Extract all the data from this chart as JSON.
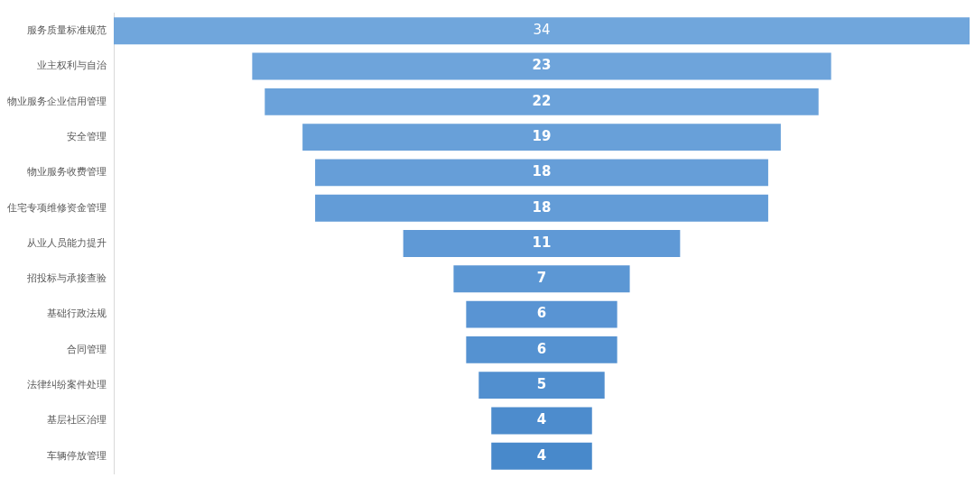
{
  "chart_data": {
    "type": "other",
    "categories": [
      "服务质量标准规范",
      "业主权利与自治",
      "物业服务企业信用管理",
      "安全管理",
      "物业服务收费管理",
      "住宅专项维修资金管理",
      "从业人员能力提升",
      "招投标与承接查验",
      "基础行政法规",
      "合同管理",
      "法律纠纷案件处理",
      "基层社区治理",
      "车辆停放管理"
    ],
    "values": [
      34,
      23,
      22,
      19,
      18,
      18,
      11,
      7,
      6,
      6,
      5,
      4,
      4
    ],
    "colors": [
      "#70a6dc",
      "#6ea4db",
      "#6ba2da",
      "#68a0d9",
      "#669ed8",
      "#639cd7",
      "#5f99d6",
      "#5c97d4",
      "#5994d3",
      "#5592d1",
      "#518fcf",
      "#4d8ccd",
      "#4889cb"
    ],
    "data_labels": true
  }
}
